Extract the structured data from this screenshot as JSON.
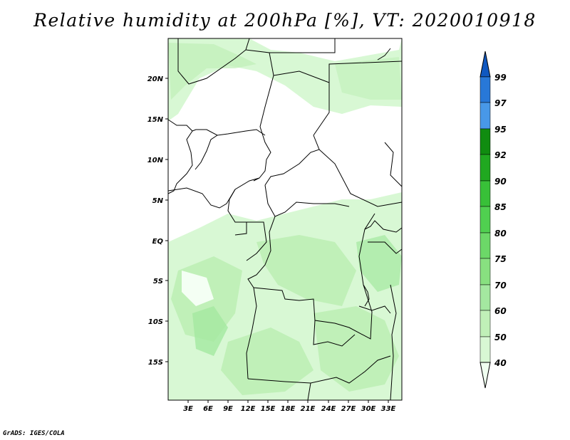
{
  "title": "Relative humidity at 200hPa [%], VT: 2020010918",
  "credit": "GrADS: IGES/COLA",
  "map": {
    "lon_ticks": [
      "3E",
      "6E",
      "9E",
      "12E",
      "15E",
      "18E",
      "21E",
      "24E",
      "27E",
      "30E",
      "33E"
    ],
    "lat_ticks": [
      "20N",
      "15N",
      "10N",
      "5N",
      "EQ",
      "5S",
      "10S",
      "15S"
    ]
  },
  "colorbar": {
    "levels": [
      "40",
      "50",
      "60",
      "70",
      "75",
      "80",
      "85",
      "90",
      "92",
      "95",
      "97",
      "99"
    ],
    "colors": [
      "#f0fff0",
      "#d8f8d4",
      "#c0f0b8",
      "#a4e8a0",
      "#88e080",
      "#6cd868",
      "#50d050",
      "#38c038",
      "#20a820",
      "#108c10",
      "#4898e8",
      "#2878d8",
      "#1058c0"
    ]
  }
}
